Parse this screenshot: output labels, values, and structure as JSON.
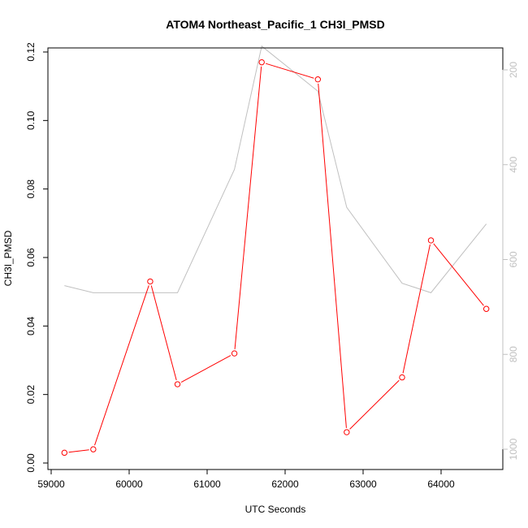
{
  "chart_data": {
    "type": "line",
    "title": "ATOM4 Northeast_Pacific_1 CH3I_PMSD",
    "xlabel": "UTC Seconds",
    "ylabel": "CH3I_PMSD",
    "xlim": [
      59000,
      64800
    ],
    "ylim": [
      0,
      0.12
    ],
    "y2lim": [
      1000,
      200
    ],
    "x_ticks": [
      59000,
      60000,
      61000,
      62000,
      63000,
      64000
    ],
    "y_ticks": [
      0.0,
      0.02,
      0.04,
      0.06,
      0.08,
      0.1,
      0.12
    ],
    "y_tick_labels": [
      "0.00",
      "0.02",
      "0.04",
      "0.06",
      "0.08",
      "0.10",
      "0.12"
    ],
    "y2_ticks": [
      200,
      400,
      600,
      800,
      1000
    ],
    "colors": {
      "primary": "#ff0000",
      "secondary": "#c0c0c0",
      "axis": "#000000"
    },
    "series": [
      {
        "axis": "left",
        "color": "#ff0000",
        "marker": "open-circle",
        "x": [
          59170,
          59540,
          60270,
          60620,
          61350,
          61700,
          62420,
          62790,
          63500,
          63870,
          64580
        ],
        "y": [
          0.003,
          0.004,
          0.053,
          0.023,
          0.032,
          0.117,
          0.112,
          0.009,
          0.025,
          0.065,
          0.045
        ]
      },
      {
        "axis": "right",
        "color": "#c0c0c0",
        "marker": "none",
        "x": [
          59170,
          59540,
          60270,
          60620,
          61350,
          61700,
          62420,
          62790,
          63500,
          63870,
          64580
        ],
        "y": [
          655,
          670,
          670,
          670,
          410,
          150,
          245,
          490,
          650,
          670,
          525
        ]
      }
    ]
  }
}
